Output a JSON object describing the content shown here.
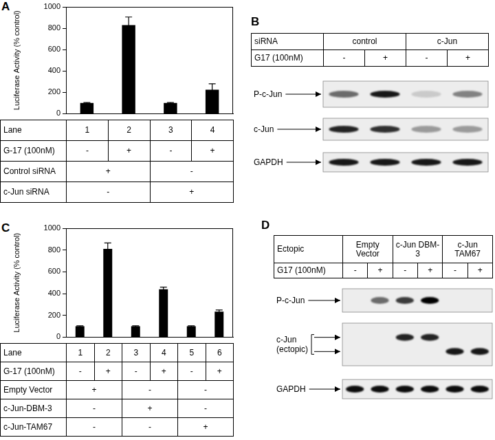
{
  "chart_data": [
    {
      "panel_label": "A",
      "type": "bar",
      "categories": [
        "1",
        "2",
        "3",
        "4"
      ],
      "values": [
        100,
        830,
        100,
        225
      ],
      "errors": [
        5,
        75,
        5,
        55
      ],
      "color": "#000000",
      "y_label": "Luciferase Activity (% control)",
      "ylim": [
        0,
        1000
      ],
      "yticks": [
        0,
        200,
        400,
        600,
        800,
        1000
      ],
      "grid": false,
      "table": {
        "header": "Lane",
        "rows": [
          {
            "label": "G-17 (100nM)",
            "cells": [
              "-",
              "+",
              "-",
              "+"
            ]
          },
          {
            "label": "Control siRNA",
            "cells": [
              {
                "text": "+",
                "span": 2
              },
              {
                "text": "-",
                "span": 2
              }
            ]
          },
          {
            "label": "c-Jun siRNA",
            "cells": [
              {
                "text": "-",
                "span": 2
              },
              {
                "text": "+",
                "span": 2
              }
            ]
          }
        ]
      }
    },
    {
      "panel_label": "C",
      "type": "bar",
      "categories": [
        "1",
        "2",
        "3",
        "4",
        "5",
        "6"
      ],
      "values": [
        100,
        810,
        100,
        440,
        100,
        235
      ],
      "errors": [
        5,
        55,
        5,
        20,
        5,
        15
      ],
      "color": "#000000",
      "y_label": "Luciferase Activity (% control)",
      "ylim": [
        0,
        1000
      ],
      "yticks": [
        0,
        200,
        400,
        600,
        800,
        1000
      ],
      "grid": false,
      "table": {
        "header": "Lane",
        "rows": [
          {
            "label": "G-17 (100nM)",
            "cells": [
              "-",
              "+",
              "-",
              "+",
              "-",
              "+"
            ]
          },
          {
            "label": "Empty Vector",
            "cells": [
              {
                "text": "+",
                "span": 2
              },
              {
                "text": "-",
                "span": 2
              },
              {
                "text": "-",
                "span": 2
              }
            ]
          },
          {
            "label": "c-Jun-DBM-3",
            "cells": [
              {
                "text": "-",
                "span": 2
              },
              {
                "text": "+",
                "span": 2
              },
              {
                "text": "-",
                "span": 2
              }
            ]
          },
          {
            "label": "c-Jun-TAM67",
            "cells": [
              {
                "text": "-",
                "span": 2
              },
              {
                "text": "-",
                "span": 2
              },
              {
                "text": "+",
                "span": 2
              }
            ]
          }
        ]
      }
    }
  ],
  "blots": [
    {
      "panel_label": "B",
      "header": {
        "label": "siRNA",
        "groups": [
          {
            "text": "control",
            "span": 2
          },
          {
            "text": "c-Jun",
            "span": 2
          }
        ]
      },
      "treatment": {
        "label": "G17 (100nM)",
        "cells": [
          "-",
          "+",
          "-",
          "+"
        ]
      },
      "bands": [
        {
          "label": [
            "P-c-Jun"
          ],
          "intensity": [
            [
              0.55,
              0.9,
              0.15,
              0.45
            ]
          ]
        },
        {
          "label": [
            "c-Jun"
          ],
          "intensity": [
            [
              0.85,
              0.8,
              0.35,
              0.35
            ]
          ]
        },
        {
          "label": [
            "GAPDH"
          ],
          "intensity": [
            [
              0.9,
              0.9,
              0.9,
              0.9
            ]
          ]
        }
      ]
    },
    {
      "panel_label": "D",
      "header": {
        "label": "Ectopic",
        "groups": [
          {
            "text": "Empty Vector",
            "span": 2
          },
          {
            "text": "c-Jun DBM-3",
            "span": 2
          },
          {
            "text": "c-Jun TAM67",
            "span": 2
          }
        ]
      },
      "treatment": {
        "label": "G17 (100nM)",
        "cells": [
          "-",
          "+",
          "-",
          "+",
          "-",
          "+"
        ]
      },
      "bands": [
        {
          "label": [
            "P-c-Jun"
          ],
          "intensity": [
            [
              0,
              0.55,
              0.75,
              1,
              0,
              0
            ]
          ]
        },
        {
          "label": [
            "c-Jun",
            "(ectopic)"
          ],
          "intensity": [
            [
              0,
              0,
              0.85,
              0.85,
              0,
              0
            ],
            [
              0,
              0,
              0,
              0,
              0.9,
              0.9
            ]
          ]
        },
        {
          "label": [
            "GAPDH"
          ],
          "intensity": [
            [
              0.95,
              0.95,
              0.95,
              0.95,
              0.95,
              0.95
            ]
          ]
        }
      ]
    }
  ]
}
